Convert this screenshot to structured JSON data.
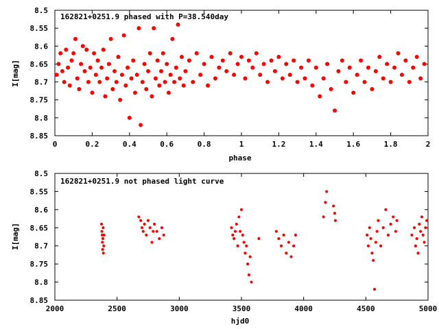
{
  "colors": {
    "points": "#ff0000",
    "axes": "#000000",
    "background": "#ffffff"
  },
  "chart_data": [
    {
      "type": "scatter",
      "title": "162821+0251.9 phased with P=38.540day",
      "xlabel": "phase",
      "ylabel": "I[mag]",
      "xlim": [
        0,
        2
      ],
      "ylim": [
        8.5,
        8.85
      ],
      "y_inverted": true,
      "grid": false,
      "legend": "none",
      "marker": "filled circle",
      "xticks": [
        "0",
        "0.2",
        "0.4",
        "0.6",
        "0.8",
        "1",
        "1.2",
        "1.4",
        "1.6",
        "1.8",
        "2"
      ],
      "yticks": [
        "8.5",
        "8.55",
        "8.6",
        "8.65",
        "8.7",
        "8.75",
        "8.8",
        "8.85"
      ],
      "xtick_values": [
        0,
        0.2,
        0.4,
        0.6,
        0.8,
        1.0,
        1.2,
        1.4,
        1.6,
        1.8,
        2.0
      ],
      "ytick_values": [
        8.5,
        8.55,
        8.6,
        8.65,
        8.7,
        8.75,
        8.8,
        8.85
      ],
      "points": [
        [
          0.01,
          8.68
        ],
        [
          0.02,
          8.65
        ],
        [
          0.03,
          8.62
        ],
        [
          0.04,
          8.67
        ],
        [
          0.05,
          8.7
        ],
        [
          0.06,
          8.61
        ],
        [
          0.07,
          8.66
        ],
        [
          0.08,
          8.71
        ],
        [
          0.09,
          8.64
        ],
        [
          0.1,
          8.62
        ],
        [
          0.11,
          8.58
        ],
        [
          0.12,
          8.69
        ],
        [
          0.13,
          8.72
        ],
        [
          0.14,
          8.65
        ],
        [
          0.15,
          8.6
        ],
        [
          0.16,
          8.67
        ],
        [
          0.17,
          8.61
        ],
        [
          0.18,
          8.7
        ],
        [
          0.19,
          8.66
        ],
        [
          0.2,
          8.73
        ],
        [
          0.21,
          8.62
        ],
        [
          0.22,
          8.68
        ],
        [
          0.23,
          8.64
        ],
        [
          0.24,
          8.7
        ],
        [
          0.25,
          8.66
        ],
        [
          0.26,
          8.61
        ],
        [
          0.27,
          8.74
        ],
        [
          0.28,
          8.69
        ],
        [
          0.29,
          8.65
        ],
        [
          0.3,
          8.58
        ],
        [
          0.31,
          8.72
        ],
        [
          0.32,
          8.67
        ],
        [
          0.33,
          8.7
        ],
        [
          0.34,
          8.63
        ],
        [
          0.35,
          8.75
        ],
        [
          0.36,
          8.68
        ],
        [
          0.37,
          8.57
        ],
        [
          0.38,
          8.71
        ],
        [
          0.39,
          8.66
        ],
        [
          0.4,
          8.8
        ],
        [
          0.41,
          8.69
        ],
        [
          0.42,
          8.64
        ],
        [
          0.43,
          8.73
        ],
        [
          0.44,
          8.68
        ],
        [
          0.45,
          8.55
        ],
        [
          0.46,
          8.82
        ],
        [
          0.47,
          8.7
        ],
        [
          0.48,
          8.65
        ],
        [
          0.49,
          8.72
        ],
        [
          0.5,
          8.67
        ],
        [
          0.51,
          8.62
        ],
        [
          0.52,
          8.74
        ],
        [
          0.53,
          8.55
        ],
        [
          0.54,
          8.69
        ],
        [
          0.55,
          8.64
        ],
        [
          0.56,
          8.71
        ],
        [
          0.57,
          8.67
        ],
        [
          0.58,
          8.62
        ],
        [
          0.59,
          8.7
        ],
        [
          0.6,
          8.65
        ],
        [
          0.61,
          8.73
        ],
        [
          0.62,
          8.68
        ],
        [
          0.63,
          8.58
        ],
        [
          0.64,
          8.7
        ],
        [
          0.65,
          8.66
        ],
        [
          0.66,
          8.54
        ],
        [
          0.67,
          8.69
        ],
        [
          0.68,
          8.63
        ],
        [
          0.69,
          8.71
        ],
        [
          0.7,
          8.67
        ],
        [
          0.72,
          8.64
        ],
        [
          0.74,
          8.7
        ],
        [
          0.76,
          8.62
        ],
        [
          0.78,
          8.68
        ],
        [
          0.8,
          8.65
        ],
        [
          0.82,
          8.71
        ],
        [
          0.84,
          8.63
        ],
        [
          0.86,
          8.69
        ],
        [
          0.88,
          8.66
        ],
        [
          0.9,
          8.64
        ],
        [
          0.92,
          8.67
        ],
        [
          0.94,
          8.62
        ],
        [
          0.96,
          8.68
        ],
        [
          0.98,
          8.65
        ],
        [
          1.0,
          8.63
        ],
        [
          1.02,
          8.69
        ],
        [
          1.04,
          8.64
        ],
        [
          1.06,
          8.66
        ],
        [
          1.08,
          8.62
        ],
        [
          1.1,
          8.68
        ],
        [
          1.12,
          8.65
        ],
        [
          1.14,
          8.7
        ],
        [
          1.16,
          8.64
        ],
        [
          1.18,
          8.67
        ],
        [
          1.2,
          8.63
        ],
        [
          1.22,
          8.69
        ],
        [
          1.24,
          8.65
        ],
        [
          1.26,
          8.68
        ],
        [
          1.28,
          8.64
        ],
        [
          1.3,
          8.7
        ],
        [
          1.32,
          8.66
        ],
        [
          1.34,
          8.69
        ],
        [
          1.36,
          8.64
        ],
        [
          1.38,
          8.71
        ],
        [
          1.4,
          8.66
        ],
        [
          1.42,
          8.74
        ],
        [
          1.44,
          8.69
        ],
        [
          1.46,
          8.65
        ],
        [
          1.48,
          8.72
        ],
        [
          1.5,
          8.78
        ],
        [
          1.52,
          8.67
        ],
        [
          1.54,
          8.64
        ],
        [
          1.56,
          8.7
        ],
        [
          1.58,
          8.66
        ],
        [
          1.6,
          8.73
        ],
        [
          1.62,
          8.68
        ],
        [
          1.64,
          8.64
        ],
        [
          1.66,
          8.7
        ],
        [
          1.68,
          8.66
        ],
        [
          1.7,
          8.72
        ],
        [
          1.72,
          8.67
        ],
        [
          1.74,
          8.63
        ],
        [
          1.76,
          8.69
        ],
        [
          1.78,
          8.65
        ],
        [
          1.8,
          8.7
        ],
        [
          1.82,
          8.66
        ],
        [
          1.84,
          8.62
        ],
        [
          1.86,
          8.68
        ],
        [
          1.88,
          8.64
        ],
        [
          1.9,
          8.7
        ],
        [
          1.92,
          8.66
        ],
        [
          1.94,
          8.63
        ],
        [
          1.96,
          8.69
        ],
        [
          1.98,
          8.65
        ]
      ]
    },
    {
      "type": "scatter",
      "title": "162821+0251.9 not phased light curve",
      "xlabel": "hjd0",
      "ylabel": "I[mag]",
      "xlim": [
        2000,
        5000
      ],
      "ylim": [
        8.5,
        8.85
      ],
      "y_inverted": true,
      "grid": false,
      "legend": "none",
      "marker": "small filled circle",
      "xticks": [
        "2000",
        "2500",
        "3000",
        "3500",
        "4000",
        "4500",
        "5000"
      ],
      "yticks": [
        "8.5",
        "8.55",
        "8.6",
        "8.65",
        "8.7",
        "8.75",
        "8.8",
        "8.85"
      ],
      "xtick_values": [
        2000,
        2500,
        3000,
        3500,
        4000,
        4500,
        5000
      ],
      "ytick_values": [
        8.5,
        8.55,
        8.6,
        8.65,
        8.7,
        8.75,
        8.8,
        8.85
      ],
      "points": [
        [
          2375,
          8.64
        ],
        [
          2378,
          8.66
        ],
        [
          2380,
          8.67
        ],
        [
          2382,
          8.69
        ],
        [
          2384,
          8.71
        ],
        [
          2386,
          8.68
        ],
        [
          2388,
          8.65
        ],
        [
          2390,
          8.72
        ],
        [
          2393,
          8.7
        ],
        [
          2395,
          8.67
        ],
        [
          2675,
          8.62
        ],
        [
          2690,
          8.63
        ],
        [
          2700,
          8.65
        ],
        [
          2710,
          8.66
        ],
        [
          2720,
          8.64
        ],
        [
          2735,
          8.67
        ],
        [
          2750,
          8.63
        ],
        [
          2765,
          8.65
        ],
        [
          2780,
          8.69
        ],
        [
          2790,
          8.66
        ],
        [
          2800,
          8.64
        ],
        [
          2820,
          8.66
        ],
        [
          2840,
          8.68
        ],
        [
          2860,
          8.65
        ],
        [
          2875,
          8.67
        ],
        [
          3420,
          8.65
        ],
        [
          3430,
          8.67
        ],
        [
          3440,
          8.68
        ],
        [
          3450,
          8.66
        ],
        [
          3460,
          8.64
        ],
        [
          3470,
          8.7
        ],
        [
          3480,
          8.62
        ],
        [
          3490,
          8.66
        ],
        [
          3500,
          8.6
        ],
        [
          3510,
          8.67
        ],
        [
          3520,
          8.69
        ],
        [
          3530,
          8.72
        ],
        [
          3540,
          8.7
        ],
        [
          3550,
          8.75
        ],
        [
          3560,
          8.78
        ],
        [
          3570,
          8.73
        ],
        [
          3580,
          8.8
        ],
        [
          3640,
          8.68
        ],
        [
          3780,
          8.66
        ],
        [
          3800,
          8.68
        ],
        [
          3820,
          8.7
        ],
        [
          3840,
          8.67
        ],
        [
          3860,
          8.72
        ],
        [
          3880,
          8.69
        ],
        [
          3900,
          8.73
        ],
        [
          3920,
          8.7
        ],
        [
          3935,
          8.67
        ],
        [
          4160,
          8.62
        ],
        [
          4175,
          8.58
        ],
        [
          4185,
          8.55
        ],
        [
          4240,
          8.59
        ],
        [
          4250,
          8.61
        ],
        [
          4255,
          8.63
        ],
        [
          4510,
          8.67
        ],
        [
          4520,
          8.7
        ],
        [
          4530,
          8.65
        ],
        [
          4540,
          8.68
        ],
        [
          4550,
          8.72
        ],
        [
          4560,
          8.74
        ],
        [
          4570,
          8.82
        ],
        [
          4580,
          8.69
        ],
        [
          4590,
          8.66
        ],
        [
          4600,
          8.63
        ],
        [
          4620,
          8.7
        ],
        [
          4640,
          8.65
        ],
        [
          4660,
          8.6
        ],
        [
          4680,
          8.67
        ],
        [
          4700,
          8.64
        ],
        [
          4720,
          8.62
        ],
        [
          4740,
          8.66
        ],
        [
          4750,
          8.63
        ],
        [
          4870,
          8.67
        ],
        [
          4890,
          8.65
        ],
        [
          4900,
          8.7
        ],
        [
          4910,
          8.68
        ],
        [
          4920,
          8.72
        ],
        [
          4930,
          8.64
        ],
        [
          4940,
          8.66
        ],
        [
          4950,
          8.62
        ],
        [
          4960,
          8.67
        ],
        [
          4970,
          8.69
        ],
        [
          4980,
          8.65
        ],
        [
          4990,
          8.63
        ]
      ]
    }
  ]
}
